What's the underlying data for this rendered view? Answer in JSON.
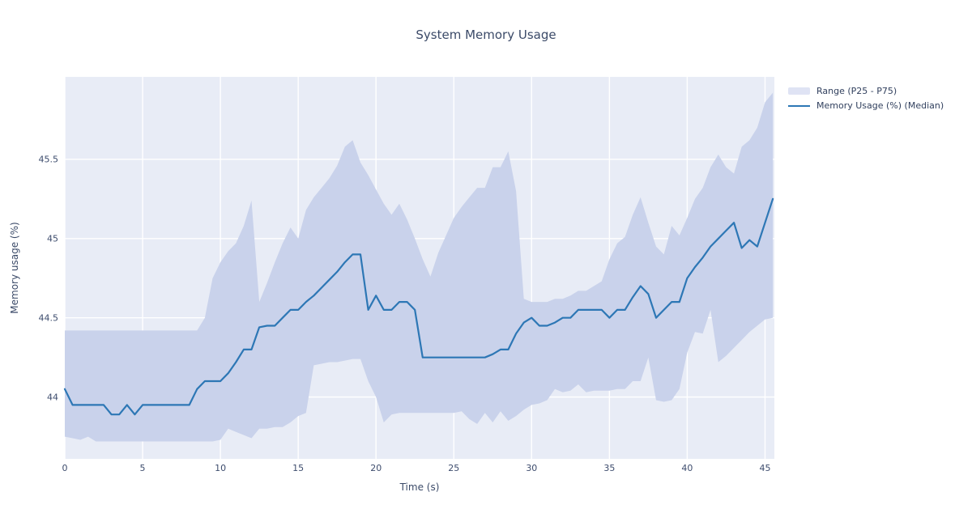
{
  "title": "System Memory Usage",
  "legend": {
    "items": [
      {
        "label": "Range (P25 - P75)",
        "swatch": "band-swatch",
        "color": "#dfe3f4"
      },
      {
        "label": "Memory Usage (%) (Median)",
        "swatch": "line-swatch",
        "color": "#2d77b5"
      }
    ]
  },
  "chart_data": {
    "type": "line",
    "title": "System Memory Usage",
    "xlabel": "Time (s)",
    "ylabel": "Memory usage (%)",
    "xlim": [
      0,
      45.6
    ],
    "ylim": [
      43.61,
      46.02
    ],
    "xticks": [
      0,
      5,
      10,
      15,
      20,
      25,
      30,
      35,
      40,
      45
    ],
    "yticks": [
      44,
      44.5,
      45,
      45.5
    ],
    "grid": true,
    "legend_position": "outside upper right",
    "plot_bg": "#e8ecf6",
    "grid_color": "#ffffff",
    "band_color": "#c9d2eb",
    "line_color": "#2d77b5",
    "x": [
      0,
      0.5,
      1,
      1.5,
      2,
      2.5,
      3,
      3.5,
      4,
      4.5,
      5,
      5.5,
      6,
      6.5,
      7,
      7.5,
      8,
      8.5,
      9,
      9.5,
      10,
      10.5,
      11,
      11.5,
      12,
      12.5,
      13,
      13.5,
      14,
      14.5,
      15,
      15.5,
      16,
      16.5,
      17,
      17.5,
      18,
      18.5,
      19,
      19.5,
      20,
      20.5,
      21,
      21.5,
      22,
      22.5,
      23,
      23.5,
      24,
      24.5,
      25,
      25.5,
      26,
      26.5,
      27,
      27.5,
      28,
      28.5,
      29,
      29.5,
      30,
      30.5,
      31,
      31.5,
      32,
      32.5,
      33,
      33.5,
      34,
      34.5,
      35,
      35.5,
      36,
      36.5,
      37,
      37.5,
      38,
      38.5,
      39,
      39.5,
      40,
      40.5,
      41,
      41.5,
      42,
      42.5,
      43,
      43.5,
      44,
      44.5,
      45,
      45.5
    ],
    "series": [
      {
        "name": "Memory Usage (%) (Median)",
        "role": "median",
        "values": [
          44.05,
          43.95,
          43.95,
          43.95,
          43.95,
          43.95,
          43.89,
          43.89,
          43.95,
          43.89,
          43.95,
          43.95,
          43.95,
          43.95,
          43.95,
          43.95,
          43.95,
          44.05,
          44.1,
          44.1,
          44.1,
          44.15,
          44.22,
          44.3,
          44.3,
          44.44,
          44.45,
          44.45,
          44.5,
          44.55,
          44.55,
          44.6,
          44.64,
          44.69,
          44.74,
          44.79,
          44.85,
          44.9,
          44.9,
          44.55,
          44.64,
          44.55,
          44.55,
          44.6,
          44.6,
          44.55,
          44.25,
          44.25,
          44.25,
          44.25,
          44.25,
          44.25,
          44.25,
          44.25,
          44.25,
          44.27,
          44.3,
          44.3,
          44.4,
          44.47,
          44.5,
          44.45,
          44.45,
          44.47,
          44.5,
          44.5,
          44.55,
          44.55,
          44.55,
          44.55,
          44.5,
          44.55,
          44.55,
          44.63,
          44.7,
          44.65,
          44.5,
          44.55,
          44.6,
          44.6,
          44.75,
          44.82,
          44.88,
          44.95,
          45.0,
          45.05,
          45.1,
          44.94,
          44.99,
          44.95,
          45.1,
          45.25
        ]
      },
      {
        "name": "P75 (band upper)",
        "role": "band_upper",
        "values": [
          44.42,
          44.42,
          44.42,
          44.42,
          44.42,
          44.42,
          44.42,
          44.42,
          44.42,
          44.42,
          44.42,
          44.42,
          44.42,
          44.42,
          44.42,
          44.42,
          44.42,
          44.42,
          44.5,
          44.75,
          44.85,
          44.92,
          44.97,
          45.08,
          45.24,
          44.6,
          44.72,
          44.85,
          44.97,
          45.07,
          45.0,
          45.18,
          45.26,
          45.32,
          45.38,
          45.46,
          45.58,
          45.62,
          45.48,
          45.4,
          45.31,
          45.22,
          45.15,
          45.22,
          45.12,
          45.0,
          44.87,
          44.76,
          44.91,
          45.02,
          45.13,
          45.2,
          45.26,
          45.32,
          45.32,
          45.45,
          45.45,
          45.55,
          45.3,
          44.62,
          44.6,
          44.6,
          44.6,
          44.62,
          44.62,
          44.64,
          44.67,
          44.67,
          44.7,
          44.73,
          44.87,
          44.97,
          45.01,
          45.15,
          45.26,
          45.1,
          44.95,
          44.9,
          45.08,
          45.02,
          45.13,
          45.25,
          45.32,
          45.45,
          45.53,
          45.45,
          45.41,
          45.58,
          45.62,
          45.7,
          45.86,
          45.92
        ]
      },
      {
        "name": "P25 (band lower)",
        "role": "band_lower",
        "values": [
          43.75,
          43.74,
          43.73,
          43.75,
          43.72,
          43.72,
          43.72,
          43.72,
          43.72,
          43.72,
          43.72,
          43.72,
          43.72,
          43.72,
          43.72,
          43.72,
          43.72,
          43.72,
          43.72,
          43.72,
          43.73,
          43.8,
          43.78,
          43.76,
          43.74,
          43.8,
          43.8,
          43.81,
          43.81,
          43.84,
          43.88,
          43.9,
          44.2,
          44.21,
          44.22,
          44.22,
          44.23,
          44.24,
          44.24,
          44.1,
          44.0,
          43.84,
          43.89,
          43.9,
          43.9,
          43.9,
          43.9,
          43.9,
          43.9,
          43.9,
          43.9,
          43.91,
          43.86,
          43.83,
          43.9,
          43.84,
          43.91,
          43.85,
          43.88,
          43.92,
          43.95,
          43.96,
          43.98,
          44.05,
          44.03,
          44.04,
          44.08,
          44.03,
          44.04,
          44.04,
          44.04,
          44.05,
          44.05,
          44.1,
          44.1,
          44.25,
          43.98,
          43.97,
          43.98,
          44.05,
          44.28,
          44.41,
          44.4,
          44.55,
          44.22,
          44.26,
          44.31,
          44.36,
          44.41,
          44.45,
          44.49,
          44.5
        ]
      }
    ]
  }
}
